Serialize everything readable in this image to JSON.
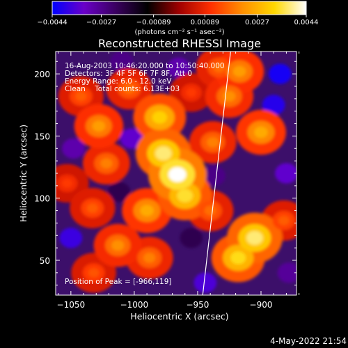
{
  "chart_data": {
    "type": "heatmap",
    "title": "Reconstructed RHESSI Image",
    "xlabel": "Heliocentric X (arcsec)",
    "ylabel": "Heliocentric Y (arcsec)",
    "xlim": [
      -1062,
      -872
    ],
    "ylim": [
      22,
      218
    ],
    "x_ticks": [
      {
        "value": -1050,
        "label": "−1050"
      },
      {
        "value": -1000,
        "label": "−1000"
      },
      {
        "value": -950,
        "label": "−950"
      },
      {
        "value": -900,
        "label": "−900"
      }
    ],
    "y_ticks": [
      {
        "value": 50,
        "label": "50"
      },
      {
        "value": 100,
        "label": "100"
      },
      {
        "value": 150,
        "label": "150"
      },
      {
        "value": 200,
        "label": "200"
      }
    ],
    "colorbar": {
      "min": -0.0044,
      "max": 0.0044,
      "colors": [
        "#0000ff",
        "#6a00c8",
        "#3a0060",
        "#000000",
        "#a00000",
        "#ff3000",
        "#ff9000",
        "#ffd800",
        "#ffffff"
      ],
      "ticks": [
        {
          "value": -0.0044,
          "label": "−0.0044"
        },
        {
          "value": -0.0027,
          "label": "−0.0027"
        },
        {
          "value": -0.00089,
          "label": "−0.00089"
        },
        {
          "value": 0.00089,
          "label": "0.00089"
        },
        {
          "value": 0.0027,
          "label": "0.0027"
        },
        {
          "value": 0.0044,
          "label": "0.0044"
        }
      ],
      "unit_label": "(photons cm⁻² s⁻¹ asec⁻²)"
    },
    "annotations": {
      "time_range": "16-Aug-2003 10:46:20.000 to 10:50:40.000",
      "detectors": "Detectors: 3F 4F 5F 6F 7F 8F, Att 0",
      "energy_range": "Energy Range: 6.0 - 12.0 keV",
      "clean_counts": "Clean    Total counts: 6.13E+03",
      "peak": "Position of Peak = [-966,119]"
    },
    "limb_line": [
      [
        -946,
        22
      ],
      [
        -924,
        218
      ]
    ],
    "peak": [
      -966,
      119
    ],
    "grid": false,
    "bright_regions": [
      {
        "x": -966,
        "y": 119,
        "value": 0.0044
      },
      {
        "x": -977,
        "y": 136,
        "value": 0.0038
      },
      {
        "x": -960,
        "y": 102,
        "value": 0.0035
      },
      {
        "x": -980,
        "y": 165,
        "value": 0.0032
      },
      {
        "x": -1028,
        "y": 158,
        "value": 0.0024
      },
      {
        "x": -1022,
        "y": 128,
        "value": 0.002
      },
      {
        "x": -1004,
        "y": 188,
        "value": 0.0018
      },
      {
        "x": -1042,
        "y": 182,
        "value": 0.0016
      },
      {
        "x": -938,
        "y": 145,
        "value": 0.002
      },
      {
        "x": -925,
        "y": 182,
        "value": 0.0022
      },
      {
        "x": -917,
        "y": 202,
        "value": 0.0024
      },
      {
        "x": -933,
        "y": 205,
        "value": 0.0018
      },
      {
        "x": -900,
        "y": 153,
        "value": 0.0026
      },
      {
        "x": -905,
        "y": 68,
        "value": 0.0038
      },
      {
        "x": -918,
        "y": 52,
        "value": 0.0034
      },
      {
        "x": -882,
        "y": 82,
        "value": 0.0016
      },
      {
        "x": -940,
        "y": 90,
        "value": 0.0018
      },
      {
        "x": -1033,
        "y": 92,
        "value": 0.0016
      },
      {
        "x": -1013,
        "y": 62,
        "value": 0.0022
      },
      {
        "x": -988,
        "y": 52,
        "value": 0.002
      },
      {
        "x": -1053,
        "y": 112,
        "value": 0.0012
      },
      {
        "x": -1032,
        "y": 40,
        "value": 0.0015
      },
      {
        "x": -955,
        "y": 185,
        "value": 0.0012
      },
      {
        "x": -990,
        "y": 90,
        "value": 0.0026
      }
    ],
    "dark_regions": [
      {
        "x": -1050,
        "y": 68,
        "value": -0.0038
      },
      {
        "x": -1048,
        "y": 140,
        "value": -0.003
      },
      {
        "x": -1002,
        "y": 148,
        "value": -0.0034
      },
      {
        "x": -1010,
        "y": 210,
        "value": -0.0026
      },
      {
        "x": -965,
        "y": 205,
        "value": -0.003
      },
      {
        "x": -885,
        "y": 200,
        "value": -0.0042
      },
      {
        "x": -890,
        "y": 175,
        "value": -0.004
      },
      {
        "x": -880,
        "y": 120,
        "value": -0.0034
      },
      {
        "x": -937,
        "y": 118,
        "value": -0.0026
      },
      {
        "x": -944,
        "y": 32,
        "value": -0.0036
      },
      {
        "x": -878,
        "y": 40,
        "value": -0.0028
      },
      {
        "x": -1012,
        "y": 105,
        "value": -0.002
      },
      {
        "x": -955,
        "y": 68,
        "value": -0.002
      }
    ]
  },
  "footer": {
    "timestamp": "4-May-2022 21:54"
  }
}
